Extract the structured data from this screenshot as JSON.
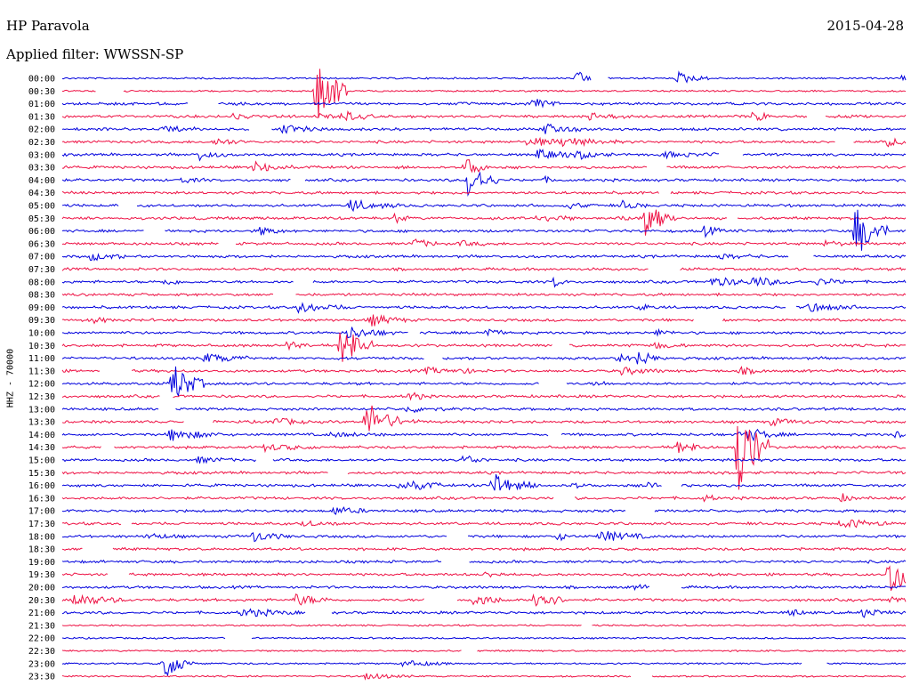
{
  "header": {
    "station": "HP Paravola",
    "date": "2015-04-28",
    "filter": "Applied filter: WWSSN-SP"
  },
  "chart_data": {
    "type": "line",
    "title": "HP Paravola",
    "ylabel": "HHZ - 70000",
    "colors": [
      "#0000dd",
      "#ee1144"
    ],
    "y_tick_labels": [
      "00:00",
      "00:30",
      "01:00",
      "01:30",
      "02:00",
      "02:30",
      "03:00",
      "03:30",
      "04:00",
      "04:30",
      "05:00",
      "05:30",
      "06:00",
      "06:30",
      "07:00",
      "07:30",
      "08:00",
      "08:30",
      "09:00",
      "09:30",
      "10:00",
      "10:30",
      "11:00",
      "11:30",
      "12:00",
      "12:30",
      "13:00",
      "13:30",
      "14:00",
      "14:30",
      "15:00",
      "15:30",
      "16:00",
      "16:30",
      "17:00",
      "17:30",
      "18:00",
      "18:30",
      "19:00",
      "19:30",
      "20:00",
      "20:30",
      "21:00",
      "21:30",
      "22:00",
      "22:30",
      "23:00",
      "23:30"
    ],
    "traces_note": "helicorder traces, one per 30-minute row, alternating blue and red",
    "events": [
      {
        "row": "00:30",
        "x_frac": 0.3,
        "amp": 3.4
      },
      {
        "row": "00:00",
        "x_frac": 0.61,
        "amp": 0.5
      },
      {
        "row": "00:00",
        "x_frac": 0.73,
        "amp": 0.5
      },
      {
        "row": "04:00",
        "x_frac": 0.48,
        "amp": 1.4
      },
      {
        "row": "05:30",
        "x_frac": 0.69,
        "amp": 1.6
      },
      {
        "row": "06:00",
        "x_frac": 0.94,
        "amp": 2.2
      },
      {
        "row": "10:30",
        "x_frac": 0.33,
        "amp": 2.0
      },
      {
        "row": "12:00",
        "x_frac": 0.13,
        "amp": 1.8
      },
      {
        "row": "13:30",
        "x_frac": 0.36,
        "amp": 1.8
      },
      {
        "row": "14:30",
        "x_frac": 0.8,
        "amp": 3.8
      },
      {
        "row": "16:00",
        "x_frac": 0.51,
        "amp": 1.2
      },
      {
        "row": "19:30",
        "x_frac": 0.98,
        "amp": 2.0
      },
      {
        "row": "20:30",
        "x_frac": 0.56,
        "amp": 1.0
      },
      {
        "row": "23:00",
        "x_frac": 0.12,
        "amp": 1.2
      }
    ]
  }
}
